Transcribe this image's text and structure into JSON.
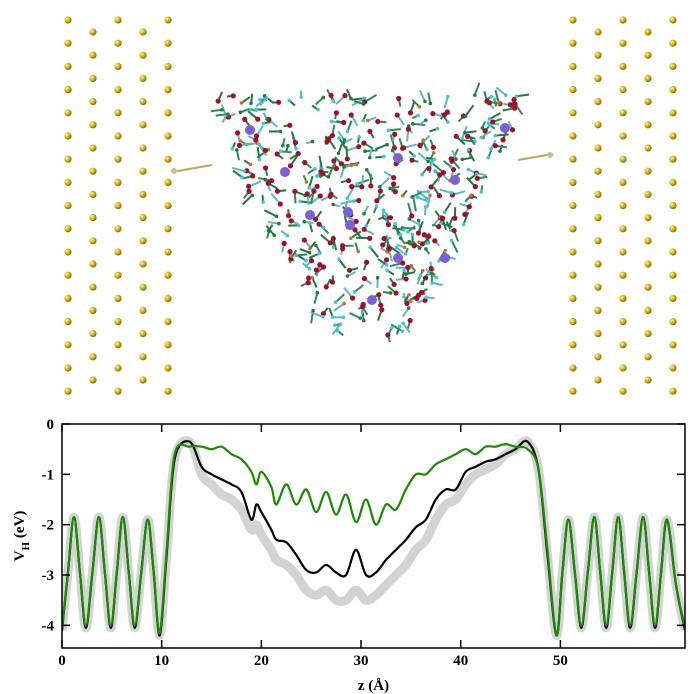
{
  "chart_data": {
    "type": "line",
    "xlabel": "z (Å)",
    "ylabel": "V",
    "ylabel_sub": "H",
    "ylabel_unit": "(eV)",
    "xlim": [
      0,
      62.5
    ],
    "ylim": [
      -4.45,
      0
    ],
    "xticks": [
      0,
      10,
      20,
      30,
      40,
      50
    ],
    "yticks": [
      0,
      -1,
      -2,
      -3,
      -4
    ],
    "x": [
      0,
      0.6,
      1.2,
      1.8,
      2.4,
      3.05,
      3.7,
      4.3,
      4.9,
      5.5,
      6.1,
      6.7,
      7.3,
      7.95,
      8.6,
      9.2,
      9.8,
      10.5,
      11.3,
      12.8,
      14,
      15,
      16,
      17,
      18,
      19,
      19.5,
      20,
      21,
      21.5,
      22.5,
      23.5,
      24.5,
      25.5,
      26.5,
      27.5,
      28.5,
      29.5,
      30.5,
      31.5,
      32.5,
      33.5,
      34.5,
      35.5,
      36.5,
      37.5,
      38.5,
      39.5,
      40.5,
      41.5,
      42.5,
      43.5,
      44.5,
      45.5,
      46.7,
      47.8,
      48.7,
      49.6,
      50.2,
      50.8,
      51.45,
      52.1,
      52.75,
      53.4,
      54,
      54.6,
      55.2,
      55.8,
      56.4,
      57,
      57.65,
      58.3,
      58.9,
      59.5,
      60.1,
      60.7,
      61.6,
      62.5
    ],
    "series": [
      {
        "color": "#d3d3d3",
        "values": [
          -4.1,
          -2.95,
          -1.85,
          -2.95,
          -4.05,
          -2.95,
          -1.85,
          -2.95,
          -4.05,
          -2.95,
          -1.85,
          -2.95,
          -4.05,
          -2.95,
          -1.9,
          -2.95,
          -4.2,
          -2.6,
          -0.7,
          -0.35,
          -1.0,
          -1.2,
          -1.4,
          -1.5,
          -1.7,
          -2.1,
          -2.0,
          -2.2,
          -2.5,
          -2.7,
          -2.8,
          -3.0,
          -3.3,
          -3.4,
          -3.3,
          -3.5,
          -3.5,
          -3.3,
          -3.5,
          -3.4,
          -3.2,
          -3.0,
          -2.8,
          -2.5,
          -2.3,
          -1.9,
          -1.6,
          -1.5,
          -1.2,
          -1.0,
          -0.9,
          -0.8,
          -0.6,
          -0.5,
          -0.35,
          -0.9,
          -2.6,
          -4.2,
          -2.95,
          -1.9,
          -2.95,
          -4.05,
          -2.95,
          -1.85,
          -2.95,
          -4.05,
          -2.95,
          -1.85,
          -2.95,
          -4.05,
          -2.95,
          -1.85,
          -2.95,
          -4.05,
          -2.95,
          -1.9,
          -3.2,
          -4.1
        ]
      },
      {
        "color": "#000000",
        "values": [
          -4.1,
          -2.95,
          -1.85,
          -2.95,
          -4.05,
          -2.95,
          -1.85,
          -2.95,
          -4.05,
          -2.95,
          -1.85,
          -2.95,
          -4.05,
          -2.95,
          -1.9,
          -2.95,
          -4.2,
          -2.6,
          -0.7,
          -0.35,
          -0.85,
          -1.0,
          -1.1,
          -1.2,
          -1.35,
          -1.9,
          -1.6,
          -1.75,
          -2.1,
          -2.3,
          -2.35,
          -2.6,
          -2.9,
          -2.95,
          -2.8,
          -2.95,
          -3.0,
          -2.5,
          -3.0,
          -2.95,
          -2.7,
          -2.5,
          -2.3,
          -2.05,
          -1.9,
          -1.5,
          -1.3,
          -1.3,
          -0.95,
          -0.85,
          -0.75,
          -0.7,
          -0.6,
          -0.5,
          -0.35,
          -0.9,
          -2.6,
          -4.2,
          -2.95,
          -1.9,
          -2.95,
          -4.05,
          -2.95,
          -1.85,
          -2.95,
          -4.05,
          -2.95,
          -1.85,
          -2.95,
          -4.05,
          -2.95,
          -1.85,
          -2.95,
          -4.05,
          -2.95,
          -1.9,
          -3.2,
          -4.1
        ]
      },
      {
        "color": "#1a8a00",
        "values": [
          -4.05,
          -2.95,
          -1.85,
          -2.95,
          -4.0,
          -2.95,
          -1.85,
          -2.95,
          -4.0,
          -2.95,
          -1.85,
          -2.95,
          -4.0,
          -2.95,
          -1.9,
          -2.95,
          -4.15,
          -2.5,
          -0.6,
          -0.45,
          -0.45,
          -0.5,
          -0.45,
          -0.6,
          -0.7,
          -0.95,
          -1.2,
          -0.95,
          -1.25,
          -1.6,
          -1.2,
          -1.6,
          -1.3,
          -1.75,
          -1.35,
          -1.8,
          -1.4,
          -1.95,
          -1.5,
          -2.0,
          -1.6,
          -1.7,
          -1.3,
          -1.0,
          -1.0,
          -0.8,
          -0.7,
          -0.6,
          -0.5,
          -0.6,
          -0.45,
          -0.45,
          -0.4,
          -0.45,
          -0.5,
          -0.9,
          -2.5,
          -4.2,
          -2.95,
          -1.9,
          -2.95,
          -4.0,
          -2.95,
          -1.85,
          -2.95,
          -4.0,
          -2.95,
          -1.85,
          -2.95,
          -4.0,
          -2.95,
          -1.85,
          -2.95,
          -4.0,
          -2.95,
          -1.9,
          -3.2,
          -4.05
        ]
      }
    ]
  }
}
